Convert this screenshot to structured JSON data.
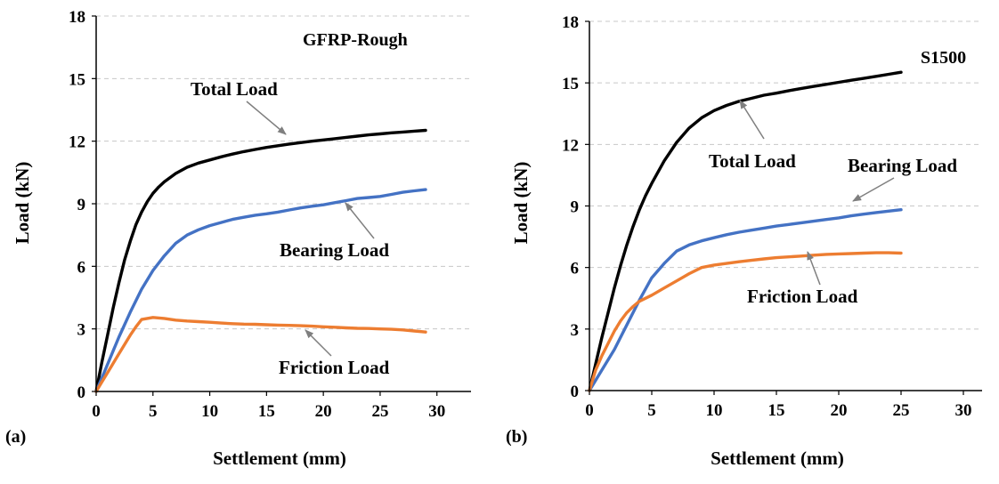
{
  "chart_data": [
    {
      "type": "line",
      "panel_label": "(a)",
      "title": "GFRP-Rough",
      "xlabel": "Settlement (mm)",
      "ylabel": "Load (kN)",
      "xlim": [
        0,
        33
      ],
      "ylim": [
        0,
        18
      ],
      "xticks": [
        0,
        5,
        10,
        15,
        20,
        25,
        30
      ],
      "yticks": [
        0,
        3,
        6,
        9,
        12,
        15,
        18
      ],
      "grid": "horizontal dashed",
      "series": [
        {
          "name": "Total Load",
          "color": "#000000",
          "x": [
            0,
            0.5,
            1,
            1.5,
            2,
            2.5,
            3,
            3.5,
            4,
            4.5,
            5,
            5.5,
            6,
            7,
            8,
            9,
            10,
            11,
            12,
            13,
            14,
            15,
            16,
            17,
            18,
            19,
            20,
            21,
            22,
            23,
            24,
            25,
            26,
            27,
            28,
            29
          ],
          "y": [
            0,
            1.4,
            2.7,
            4.0,
            5.2,
            6.3,
            7.2,
            8.0,
            8.6,
            9.1,
            9.5,
            9.8,
            10.05,
            10.45,
            10.75,
            10.95,
            11.1,
            11.25,
            11.38,
            11.5,
            11.6,
            11.7,
            11.78,
            11.86,
            11.93,
            12.0,
            12.06,
            12.12,
            12.18,
            12.24,
            12.3,
            12.35,
            12.4,
            12.44,
            12.48,
            12.52
          ]
        },
        {
          "name": "Bearing Load",
          "color": "#4472C4",
          "x": [
            0,
            1,
            2,
            3,
            4,
            5,
            6,
            7,
            8,
            9,
            10,
            11,
            12,
            13,
            14,
            15,
            16,
            17,
            18,
            19,
            20,
            21,
            22,
            23,
            24,
            25,
            26,
            27,
            28,
            29
          ],
          "y": [
            0,
            1.3,
            2.6,
            3.8,
            4.9,
            5.8,
            6.5,
            7.1,
            7.5,
            7.75,
            7.95,
            8.1,
            8.25,
            8.35,
            8.45,
            8.52,
            8.6,
            8.7,
            8.8,
            8.88,
            8.95,
            9.05,
            9.15,
            9.25,
            9.3,
            9.35,
            9.45,
            9.55,
            9.62,
            9.68
          ]
        },
        {
          "name": "Friction Load",
          "color": "#ED7D31",
          "x": [
            0,
            0.5,
            1,
            1.5,
            2,
            2.5,
            3,
            3.5,
            4,
            5,
            6,
            7,
            8,
            9,
            10,
            11,
            12,
            13,
            14,
            15,
            16,
            17,
            18,
            19,
            20,
            21,
            22,
            23,
            24,
            25,
            26,
            27,
            28,
            29
          ],
          "y": [
            0,
            0.45,
            0.9,
            1.35,
            1.8,
            2.25,
            2.7,
            3.1,
            3.45,
            3.55,
            3.5,
            3.42,
            3.38,
            3.35,
            3.32,
            3.28,
            3.25,
            3.23,
            3.22,
            3.2,
            3.18,
            3.17,
            3.15,
            3.13,
            3.1,
            3.08,
            3.05,
            3.03,
            3.02,
            3.0,
            2.98,
            2.95,
            2.9,
            2.85
          ]
        }
      ],
      "annotations": [
        "Total Load",
        "Bearing Load",
        "Friction Load"
      ]
    },
    {
      "type": "line",
      "panel_label": "(b)",
      "title": "S1500",
      "xlabel": "Settlement (mm)",
      "ylabel": "Load (kN)",
      "xlim": [
        0,
        31.5
      ],
      "ylim": [
        0,
        18
      ],
      "xticks": [
        0,
        5,
        10,
        15,
        20,
        25,
        30
      ],
      "yticks": [
        0,
        3,
        6,
        9,
        12,
        15,
        18
      ],
      "grid": "horizontal dashed",
      "series": [
        {
          "name": "Total Load",
          "color": "#000000",
          "x": [
            0,
            0.5,
            1,
            1.5,
            2,
            2.5,
            3,
            3.5,
            4,
            4.5,
            5,
            6,
            7,
            8,
            9,
            10,
            11,
            12,
            13,
            14,
            15,
            16,
            17,
            18,
            19,
            20,
            21,
            22,
            23,
            24,
            25
          ],
          "y": [
            0,
            1.3,
            2.6,
            3.8,
            5.0,
            6.1,
            7.1,
            8.0,
            8.8,
            9.5,
            10.1,
            11.2,
            12.1,
            12.8,
            13.3,
            13.65,
            13.9,
            14.1,
            14.25,
            14.4,
            14.5,
            14.62,
            14.73,
            14.83,
            14.93,
            15.03,
            15.13,
            15.22,
            15.32,
            15.42,
            15.52
          ]
        },
        {
          "name": "Bearing Load",
          "color": "#4472C4",
          "x": [
            0,
            1,
            2,
            3,
            4,
            5,
            6,
            7,
            8,
            9,
            10,
            11,
            12,
            13,
            14,
            15,
            16,
            17,
            18,
            19,
            20,
            21,
            22,
            23,
            24,
            25
          ],
          "y": [
            0,
            1.0,
            2.0,
            3.2,
            4.4,
            5.5,
            6.2,
            6.8,
            7.1,
            7.3,
            7.45,
            7.6,
            7.72,
            7.82,
            7.92,
            8.02,
            8.1,
            8.18,
            8.26,
            8.34,
            8.42,
            8.52,
            8.6,
            8.68,
            8.75,
            8.82
          ]
        },
        {
          "name": "Friction Load",
          "color": "#ED7D31",
          "x": [
            0,
            0.5,
            1,
            1.5,
            2,
            2.5,
            3,
            3.5,
            4,
            5,
            6,
            7,
            8,
            9,
            10,
            11,
            12,
            13,
            14,
            15,
            16,
            17,
            18,
            19,
            20,
            21,
            22,
            23,
            24,
            25
          ],
          "y": [
            0,
            1.0,
            1.7,
            2.3,
            2.9,
            3.4,
            3.8,
            4.1,
            4.35,
            4.65,
            5.0,
            5.35,
            5.7,
            6.0,
            6.12,
            6.2,
            6.28,
            6.35,
            6.42,
            6.48,
            6.52,
            6.56,
            6.6,
            6.64,
            6.66,
            6.68,
            6.7,
            6.72,
            6.72,
            6.7
          ]
        }
      ],
      "annotations": [
        "Total Load",
        "Bearing Load",
        "Friction Load"
      ]
    }
  ]
}
